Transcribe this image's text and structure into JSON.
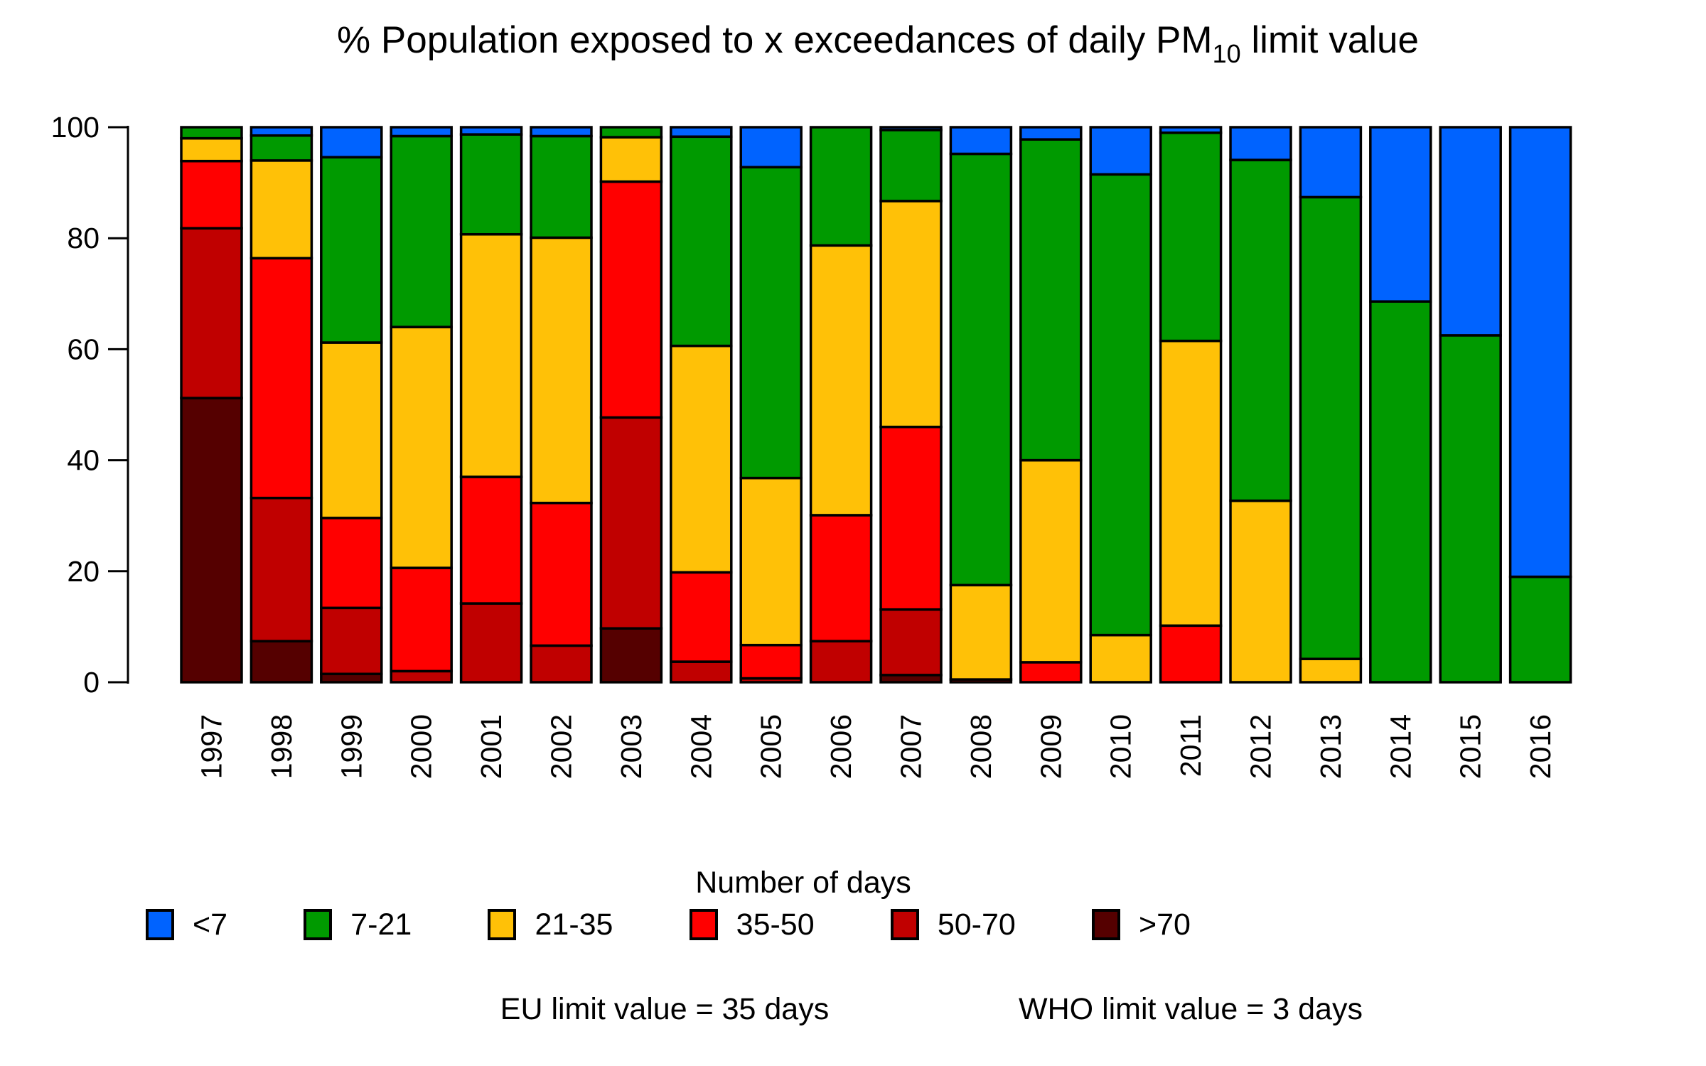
{
  "chart_data": {
    "type": "bar",
    "variant": "stacked-percentage",
    "title": "% Population exposed to x exceedances of daily PM10 limit value",
    "title_prefix": "% Population exposed to x exceedances of daily PM",
    "title_sub": "10",
    "title_suffix": " limit value",
    "xlabel": "",
    "ylabel": "",
    "ylim": [
      0,
      100
    ],
    "yticks": [
      0,
      20,
      40,
      60,
      80,
      100
    ],
    "grid": false,
    "legend_position": "bottom",
    "legend_title": "Number of days",
    "bar_border_color": "#000000",
    "categories": [
      "1997",
      "1998",
      "1999",
      "2000",
      "2001",
      "2002",
      "2003",
      "2004",
      "2005",
      "2006",
      "2007",
      "2008",
      "2009",
      "2010",
      "2011",
      "2012",
      "2013",
      "2014",
      "2015",
      "2016"
    ],
    "series": [
      {
        "name": "<7",
        "color": "#0063ff",
        "values": [
          0,
          1.5,
          5.4,
          1.6,
          1.3,
          1.6,
          0,
          1.7,
          7.2,
          0,
          0.5,
          4.8,
          2.2,
          8.5,
          1.0,
          5.9,
          12.6,
          31.4,
          37.5,
          81.0
        ]
      },
      {
        "name": "7-21",
        "color": "#009a00",
        "values": [
          2.0,
          4.5,
          33.4,
          34.4,
          18.0,
          18.3,
          1.8,
          37.7,
          56.0,
          21.3,
          12.8,
          77.7,
          57.8,
          83.0,
          37.5,
          61.4,
          83.2,
          68.6,
          62.5,
          19.0
        ]
      },
      {
        "name": "21-35",
        "color": "#ffc107",
        "values": [
          4.1,
          17.6,
          31.6,
          43.4,
          43.7,
          47.8,
          8.0,
          40.8,
          30.1,
          48.6,
          40.7,
          17.0,
          36.4,
          8.5,
          51.3,
          32.7,
          4.2,
          0,
          0,
          0
        ]
      },
      {
        "name": "35-50",
        "color": "#ff0000",
        "values": [
          12.1,
          43.2,
          16.2,
          18.6,
          22.8,
          25.7,
          42.5,
          16.1,
          6.0,
          22.7,
          32.9,
          0.5,
          3.6,
          0,
          10.2,
          0,
          0,
          0,
          0,
          0
        ]
      },
      {
        "name": "50-70",
        "color": "#c00000",
        "values": [
          30.6,
          25.8,
          11.9,
          2.0,
          14.2,
          6.6,
          38.0,
          3.7,
          0.7,
          7.4,
          11.8,
          0,
          0,
          0,
          0,
          0,
          0,
          0,
          0,
          0
        ]
      },
      {
        "name": ">70",
        "color": "#550000",
        "values": [
          51.2,
          7.4,
          1.5,
          0,
          0,
          0,
          9.7,
          0,
          0,
          0,
          1.3,
          0,
          0,
          0,
          0,
          0,
          0,
          0,
          0,
          0
        ]
      }
    ],
    "stacking_note": "bars stack bottom-to-top in reverse legend order (>70 at bottom, <7 at top)",
    "annotations": [
      "EU limit value = 35 days",
      "WHO limit value = 3 days"
    ]
  }
}
